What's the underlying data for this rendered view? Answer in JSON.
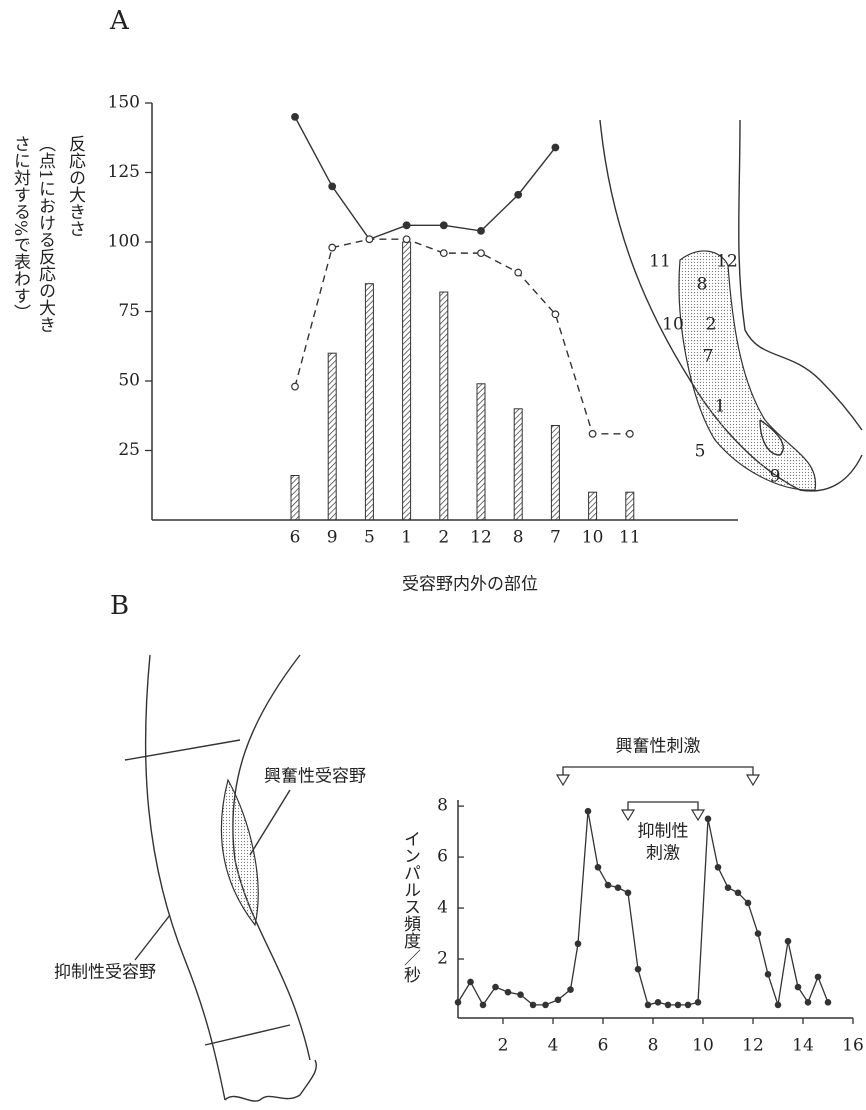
{
  "chart_data": [
    {
      "type": "bar",
      "panel": "A",
      "y_label": "反応の大きさ",
      "y_label_note": [
        "（点1における反応の大き",
        "さに対する%で表わす）"
      ],
      "x_label": "受容野内外の部位",
      "categories": [
        "6",
        "9",
        "5",
        "1",
        "2",
        "12",
        "8",
        "7",
        "10",
        "11"
      ],
      "series": [
        {
          "type": "bar",
          "color": "#333333",
          "values": [
            16,
            60,
            85,
            100,
            82,
            49,
            40,
            34,
            10,
            10
          ]
        },
        {
          "type": "line",
          "marker": "filled",
          "color": "#333333",
          "values": [
            145,
            120,
            101,
            106,
            106,
            104,
            117,
            134,
            null,
            null
          ]
        },
        {
          "type": "line",
          "marker": "open",
          "dashed": true,
          "color": "#333333",
          "values": [
            48,
            98,
            101,
            101,
            96,
            96,
            89,
            74,
            31,
            31
          ]
        }
      ],
      "ylim": [
        0,
        150
      ],
      "yticks": [
        25,
        50,
        75,
        100,
        125,
        150
      ],
      "grid": false
    },
    {
      "type": "line",
      "panel": "B",
      "y_label": "インパルス頻度／秒",
      "x": [
        0.2,
        0.7,
        1.2,
        1.7,
        2.2,
        2.7,
        3.2,
        3.7,
        4.2,
        4.7,
        5.0,
        5.4,
        5.8,
        6.2,
        6.6,
        7.0,
        7.4,
        7.8,
        8.2,
        8.6,
        9.0,
        9.4,
        9.8,
        10.2,
        10.6,
        11.0,
        11.4,
        11.8,
        12.2,
        12.6,
        13.0,
        13.4,
        13.8,
        14.2,
        14.6,
        15.0
      ],
      "values": [
        0.3,
        1.1,
        0.2,
        0.9,
        0.7,
        0.6,
        0.2,
        0.2,
        0.4,
        0.8,
        2.6,
        7.8,
        5.6,
        4.9,
        4.8,
        4.6,
        1.6,
        0.2,
        0.3,
        0.2,
        0.2,
        0.2,
        0.3,
        7.5,
        5.6,
        4.8,
        4.6,
        4.2,
        3.0,
        1.4,
        0.2,
        2.7,
        0.9,
        0.3,
        1.3,
        0.3
      ],
      "color": "#333333",
      "stimuli": [
        {
          "label": [
            "興奮性刺激"
          ],
          "start": 4.4,
          "end": 12.0
        },
        {
          "label": [
            "抑制性",
            "刺激"
          ],
          "start": 7.0,
          "end": 9.8
        }
      ],
      "xlim": [
        0,
        16.5
      ],
      "xticks": [
        2,
        4,
        6,
        8,
        10,
        12,
        14,
        16
      ],
      "ylim": [
        0,
        8.2
      ],
      "yticks": [
        2,
        4,
        6,
        8
      ],
      "grid": false
    }
  ],
  "illustration_a": {
    "labels": [
      "11",
      "12",
      "8",
      "10",
      "2",
      "7",
      "1",
      "5",
      "9"
    ]
  },
  "illustration_b": {
    "excitatory": "興奮性受容野",
    "inhibitory": "抑制性受容野"
  }
}
